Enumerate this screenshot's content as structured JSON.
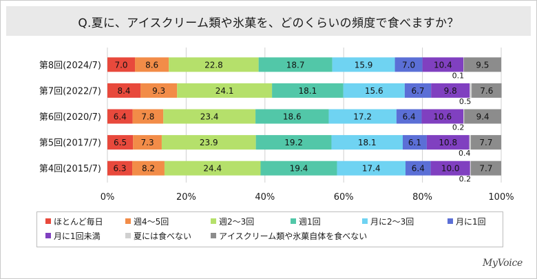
{
  "chart_data": {
    "type": "bar",
    "orientation": "horizontal",
    "stacked": "percent",
    "title": "Q.夏に、アイスクリーム類や氷菓を、どのくらいの頻度で食べますか？",
    "categories": [
      "第8回(2024/7)",
      "第7回(2022/7)",
      "第6回(2020/7)",
      "第5回(2017/7)",
      "第4回(2015/7)"
    ],
    "xlim": [
      0,
      100
    ],
    "x_ticks": [
      "0%",
      "20%",
      "40%",
      "60%",
      "80%",
      "100%"
    ],
    "grid": true,
    "legend_position": "bottom",
    "series": [
      {
        "name": "ほとんど毎日",
        "color": "#e8493c",
        "values": [
          7.0,
          8.4,
          6.4,
          6.5,
          6.3
        ],
        "labels": [
          "7.0",
          "8.4",
          "6.4",
          "6.5",
          "6.3"
        ]
      },
      {
        "name": "週4～5回",
        "color": "#f28c48",
        "values": [
          8.6,
          9.3,
          7.8,
          7.3,
          8.2
        ],
        "labels": [
          "8.6",
          "9.3",
          "7.8",
          "7.3",
          "8.2"
        ]
      },
      {
        "name": "週2～3回",
        "color": "#b5e06b",
        "values": [
          22.8,
          24.1,
          23.4,
          23.9,
          24.4
        ],
        "labels": [
          "22.8",
          "24.1",
          "23.4",
          "23.9",
          "24.4"
        ]
      },
      {
        "name": "週1回",
        "color": "#52c7a8",
        "values": [
          18.7,
          18.1,
          18.6,
          19.2,
          19.4
        ],
        "labels": [
          "18.7",
          "18.1",
          "18.6",
          "19.2",
          "19.4"
        ]
      },
      {
        "name": "月に2～3回",
        "color": "#6fd3f2",
        "values": [
          15.9,
          15.6,
          17.2,
          18.1,
          17.4
        ],
        "labels": [
          "15.9",
          "15.6",
          "17.2",
          "18.1",
          "17.4"
        ]
      },
      {
        "name": "月に1回",
        "color": "#5b6fd6",
        "values": [
          7.0,
          6.7,
          6.4,
          6.1,
          6.4
        ],
        "labels": [
          "7.0",
          "6.7",
          "6.4",
          "6.1",
          "6.4"
        ]
      },
      {
        "name": "月に1回未満",
        "color": "#8040c0",
        "values": [
          10.4,
          9.8,
          10.6,
          10.8,
          10.0
        ],
        "labels": [
          "10.4",
          "9.8",
          "10.6",
          "10.8",
          "10.0"
        ]
      },
      {
        "name": "夏には食べない",
        "color": "#d0d0d0",
        "values": [
          0.1,
          0.5,
          0.2,
          0.4,
          0.2
        ],
        "labels": [
          "0.1",
          "0.5",
          "0.2",
          "0.4",
          "0.2"
        ]
      },
      {
        "name": "アイスクリーム類や氷菓自体を食べない",
        "color": "#8c8c8c",
        "values": [
          9.5,
          7.6,
          9.4,
          7.7,
          7.7
        ],
        "labels": [
          "9.5",
          "7.6",
          "9.4",
          "7.7",
          "7.7"
        ]
      }
    ]
  },
  "brand": {
    "logo_text": "MyVoice"
  }
}
